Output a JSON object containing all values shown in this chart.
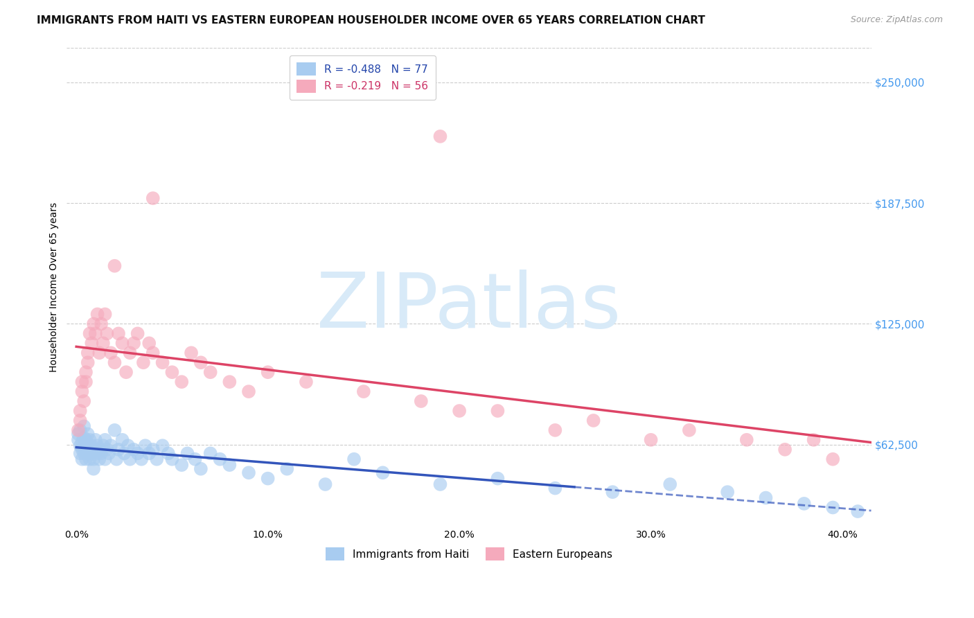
{
  "title": "IMMIGRANTS FROM HAITI VS EASTERN EUROPEAN HOUSEHOLDER INCOME OVER 65 YEARS CORRELATION CHART",
  "source": "Source: ZipAtlas.com",
  "ylabel": "Householder Income Over 65 years",
  "xlabel_ticks": [
    "0.0%",
    "10.0%",
    "20.0%",
    "30.0%",
    "40.0%"
  ],
  "xlabel_tick_vals": [
    0.0,
    0.1,
    0.2,
    0.3,
    0.4
  ],
  "right_ytick_labels": [
    "$62,500",
    "$125,000",
    "$187,500",
    "$250,000"
  ],
  "right_ytick_vals": [
    62500,
    125000,
    187500,
    250000
  ],
  "xlim": [
    -0.005,
    0.415
  ],
  "ylim": [
    20000,
    268000
  ],
  "haiti_R": -0.488,
  "haiti_N": 77,
  "eastern_R": -0.219,
  "eastern_N": 56,
  "haiti_color": "#A8CCF0",
  "eastern_color": "#F5AABC",
  "haiti_line_color": "#3355BB",
  "eastern_line_color": "#DD4466",
  "background_color": "#FFFFFF",
  "grid_color": "#CCCCCC",
  "watermark_color": "#D8EAF8",
  "title_fontsize": 11,
  "axis_label_fontsize": 10,
  "tick_fontsize": 10,
  "legend_fontsize": 11,
  "haiti_x": [
    0.001,
    0.001,
    0.002,
    0.002,
    0.002,
    0.003,
    0.003,
    0.003,
    0.004,
    0.004,
    0.004,
    0.005,
    0.005,
    0.005,
    0.006,
    0.006,
    0.006,
    0.007,
    0.007,
    0.007,
    0.008,
    0.008,
    0.009,
    0.009,
    0.01,
    0.01,
    0.011,
    0.011,
    0.012,
    0.012,
    0.013,
    0.014,
    0.015,
    0.015,
    0.016,
    0.017,
    0.018,
    0.02,
    0.021,
    0.022,
    0.024,
    0.025,
    0.027,
    0.028,
    0.03,
    0.032,
    0.034,
    0.036,
    0.038,
    0.04,
    0.042,
    0.045,
    0.048,
    0.05,
    0.055,
    0.058,
    0.062,
    0.065,
    0.07,
    0.075,
    0.08,
    0.09,
    0.1,
    0.11,
    0.13,
    0.145,
    0.16,
    0.19,
    0.22,
    0.25,
    0.28,
    0.31,
    0.34,
    0.36,
    0.38,
    0.395,
    0.408
  ],
  "haiti_y": [
    65000,
    68000,
    62000,
    70000,
    58000,
    64000,
    60000,
    55000,
    66000,
    72000,
    58000,
    60000,
    65000,
    55000,
    62000,
    68000,
    58000,
    55000,
    60000,
    65000,
    58000,
    62000,
    50000,
    55000,
    60000,
    65000,
    58000,
    62000,
    55000,
    60000,
    58000,
    62000,
    65000,
    55000,
    60000,
    58000,
    62000,
    70000,
    55000,
    60000,
    65000,
    58000,
    62000,
    55000,
    60000,
    58000,
    55000,
    62000,
    58000,
    60000,
    55000,
    62000,
    58000,
    55000,
    52000,
    58000,
    55000,
    50000,
    58000,
    55000,
    52000,
    48000,
    45000,
    50000,
    42000,
    55000,
    48000,
    42000,
    45000,
    40000,
    38000,
    42000,
    38000,
    35000,
    32000,
    30000,
    28000
  ],
  "eastern_x": [
    0.001,
    0.002,
    0.002,
    0.003,
    0.003,
    0.004,
    0.005,
    0.005,
    0.006,
    0.006,
    0.007,
    0.008,
    0.009,
    0.01,
    0.011,
    0.012,
    0.013,
    0.014,
    0.015,
    0.016,
    0.018,
    0.02,
    0.022,
    0.024,
    0.026,
    0.028,
    0.03,
    0.032,
    0.035,
    0.038,
    0.04,
    0.045,
    0.05,
    0.055,
    0.06,
    0.065,
    0.07,
    0.08,
    0.09,
    0.1,
    0.12,
    0.15,
    0.18,
    0.2,
    0.22,
    0.25,
    0.27,
    0.3,
    0.32,
    0.35,
    0.37,
    0.385,
    0.395,
    0.19,
    0.04,
    0.02
  ],
  "eastern_y": [
    70000,
    80000,
    75000,
    90000,
    95000,
    85000,
    100000,
    95000,
    105000,
    110000,
    120000,
    115000,
    125000,
    120000,
    130000,
    110000,
    125000,
    115000,
    130000,
    120000,
    110000,
    105000,
    120000,
    115000,
    100000,
    110000,
    115000,
    120000,
    105000,
    115000,
    110000,
    105000,
    100000,
    95000,
    110000,
    105000,
    100000,
    95000,
    90000,
    100000,
    95000,
    90000,
    85000,
    80000,
    80000,
    70000,
    75000,
    65000,
    70000,
    65000,
    60000,
    65000,
    55000,
    222000,
    190000,
    155000
  ]
}
